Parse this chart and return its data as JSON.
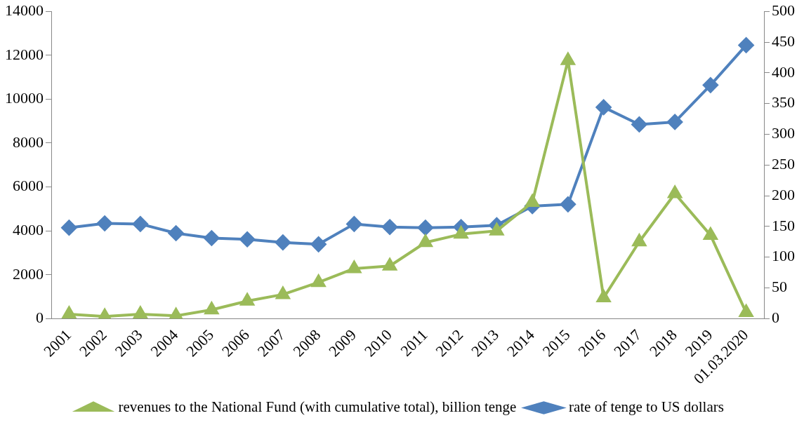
{
  "chart_data": {
    "type": "line",
    "categories": [
      "2001",
      "2002",
      "2003",
      "2004",
      "2005",
      "2006",
      "2007",
      "2008",
      "2009",
      "2010",
      "2011",
      "2012",
      "2013",
      "2014",
      "2015",
      "2016",
      "2017",
      "2018",
      "2019",
      "01.03.2020"
    ],
    "series": [
      {
        "name": "revenues to the National Fund (with cumulative total), billion tenge",
        "color": "#9bbb59",
        "marker": "triangle",
        "values": [
          200,
          100,
          200,
          130,
          400,
          800,
          1100,
          1650,
          2280,
          2400,
          3470,
          3850,
          4000,
          5300,
          11760,
          950,
          3500,
          5700,
          3800,
          280
        ]
      },
      {
        "name": "rate of tenge to US dollars",
        "color": "#4f81bd",
        "marker": "diamond",
        "axis": "y2",
        "values": [
          148,
          155,
          154,
          139,
          131,
          129,
          124,
          121,
          154,
          149,
          148,
          149,
          152,
          183,
          186,
          344,
          316,
          320,
          380,
          445
        ]
      }
    ],
    "ylim": [
      0,
      14000
    ],
    "yticks": [
      0,
      2000,
      4000,
      6000,
      8000,
      10000,
      12000,
      14000
    ],
    "y2lim": [
      0,
      500
    ],
    "y2ticks": [
      0,
      50,
      100,
      150,
      200,
      250,
      300,
      350,
      400,
      450,
      500
    ],
    "grid": false,
    "legend": "bottom",
    "line_style": "solid"
  }
}
